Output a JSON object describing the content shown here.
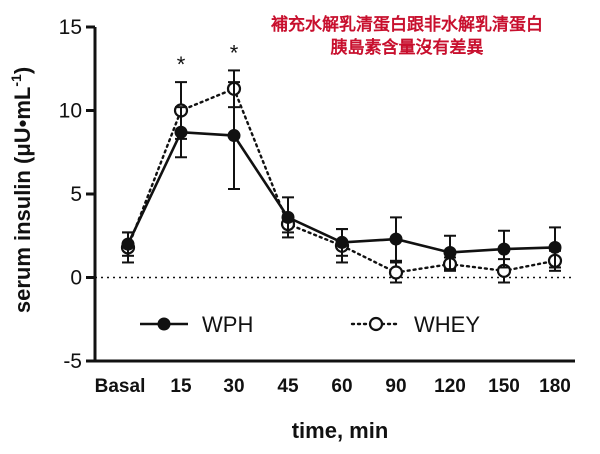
{
  "chart_data": {
    "type": "line",
    "categories": [
      "Basal",
      "15",
      "30",
      "45",
      "60",
      "90",
      "120",
      "150",
      "180"
    ],
    "series": [
      {
        "name": "WPH",
        "values": [
          2.0,
          8.7,
          8.5,
          3.6,
          2.1,
          2.3,
          1.5,
          1.7,
          1.8
        ],
        "errors": [
          0.7,
          1.5,
          3.2,
          1.2,
          0.8,
          1.3,
          1.0,
          1.1,
          1.2
        ],
        "marker": "filled-circle",
        "line_style": "solid"
      },
      {
        "name": "WHEY",
        "values": [
          1.8,
          10.0,
          11.3,
          3.2,
          1.9,
          0.3,
          0.8,
          0.4,
          1.0
        ],
        "errors": [
          0.9,
          1.7,
          1.1,
          0.5,
          1.0,
          0.6,
          0.4,
          0.7,
          0.6
        ],
        "marker": "open-circle",
        "line_style": "dotted"
      }
    ],
    "significance_markers": [
      {
        "category": "15",
        "label": "*"
      },
      {
        "category": "30",
        "label": "*"
      }
    ],
    "xlabel": "time, min",
    "ylabel": "serum insulin (μU•mL",
    "ylabel_superscript": "-1",
    "ylabel_close": ")",
    "ylim": [
      -5,
      15
    ],
    "yticks": [
      "15",
      "10",
      "5",
      "0",
      "-5"
    ],
    "zero_line": "dotted",
    "legend_position": "bottom-center",
    "annotation": {
      "line1": "補充水解乳清蛋白跟非水解乳清蛋白",
      "line2": "胰島素含量沒有差異",
      "color": "#c8102e"
    },
    "colors": {
      "series": "#111111"
    }
  }
}
